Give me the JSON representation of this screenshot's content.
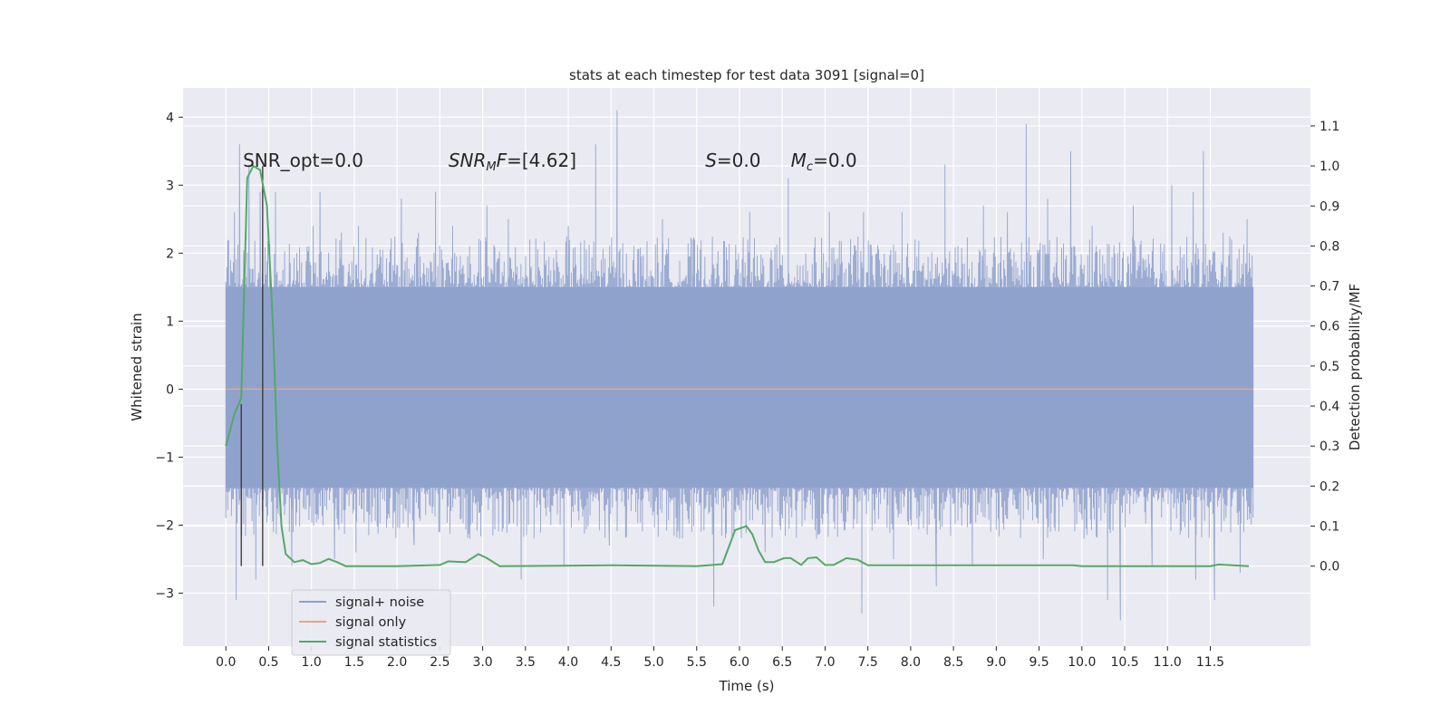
{
  "chart_data": {
    "type": "line",
    "title": "stats at each timestep for test data 3091 [signal=0]",
    "xlabel": "Time (s)",
    "ylabel": "Whitened strain",
    "ylabel_right": "Detection probability/MF",
    "xlim": [
      -0.5,
      12.67
    ],
    "ylim": [
      -3.78,
      4.43
    ],
    "ylim_right": [
      -0.2,
      1.195
    ],
    "x_ticks": [
      0.0,
      0.5,
      1.0,
      1.5,
      2.0,
      2.5,
      3.0,
      3.5,
      4.0,
      4.5,
      5.0,
      5.5,
      6.0,
      6.5,
      7.0,
      7.5,
      8.0,
      8.5,
      9.0,
      9.5,
      10.0,
      10.5,
      11.0,
      11.5
    ],
    "x_tick_labels": [
      "0.0",
      "0.5",
      "1.0",
      "1.5",
      "2.0",
      "2.5",
      "3.0",
      "3.5",
      "4.0",
      "4.5",
      "5.0",
      "5.5",
      "6.0",
      "6.5",
      "7.0",
      "7.5",
      "8.0",
      "8.5",
      "9.0",
      "9.5",
      "10.0",
      "10.5",
      "11.0",
      "11.5"
    ],
    "y_ticks": [
      -3,
      -2,
      -1,
      0,
      1,
      2,
      3,
      4
    ],
    "y_tick_labels": [
      "−3",
      "−2",
      "−1",
      "0",
      "1",
      "2",
      "3",
      "4"
    ],
    "y_ticks_right": [
      0.0,
      0.1,
      0.2,
      0.3,
      0.4,
      0.5,
      0.6,
      0.7,
      0.8,
      0.9,
      1.0,
      1.1
    ],
    "y_tick_labels_right": [
      "0.0",
      "0.1",
      "0.2",
      "0.3",
      "0.4",
      "0.5",
      "0.6",
      "0.7",
      "0.8",
      "0.9",
      "1.0",
      "1.1"
    ],
    "grid": true,
    "legend_position": "lower-left",
    "series": [
      {
        "name": "signal+ noise",
        "axis": "left",
        "color": "#8da0cb",
        "noise_envelope": {
          "x_range": [
            0.0,
            12.0
          ],
          "typical_low": -1.45,
          "typical_high": 1.5
        },
        "spikes": [
          {
            "x": 0.03,
            "y": 2.1
          },
          {
            "x": 0.1,
            "y": 2.6
          },
          {
            "x": 0.16,
            "y": 3.6
          },
          {
            "x": 0.27,
            "y": 3.3
          },
          {
            "x": 0.4,
            "y": 2.9
          },
          {
            "x": 0.58,
            "y": 2.9
          },
          {
            "x": 0.97,
            "y": 2.1
          },
          {
            "x": 1.02,
            "y": 2.4
          },
          {
            "x": 1.1,
            "y": 2.9
          },
          {
            "x": 1.35,
            "y": 2.3
          },
          {
            "x": 1.55,
            "y": 2.4
          },
          {
            "x": 2.05,
            "y": 2.8
          },
          {
            "x": 2.25,
            "y": 2.3
          },
          {
            "x": 2.45,
            "y": 2.9
          },
          {
            "x": 2.65,
            "y": 2.4
          },
          {
            "x": 3.05,
            "y": 2.7
          },
          {
            "x": 3.3,
            "y": 2.5
          },
          {
            "x": 3.55,
            "y": 2.2
          },
          {
            "x": 4.0,
            "y": 2.4
          },
          {
            "x": 4.32,
            "y": 3.6
          },
          {
            "x": 4.57,
            "y": 4.1
          },
          {
            "x": 5.1,
            "y": 2.5
          },
          {
            "x": 5.45,
            "y": 2.2
          },
          {
            "x": 6.12,
            "y": 2.6
          },
          {
            "x": 6.57,
            "y": 3.1
          },
          {
            "x": 7.05,
            "y": 2.6
          },
          {
            "x": 7.45,
            "y": 2.6
          },
          {
            "x": 7.9,
            "y": 2.6
          },
          {
            "x": 8.4,
            "y": 3.3
          },
          {
            "x": 8.85,
            "y": 2.7
          },
          {
            "x": 9.13,
            "y": 2.6
          },
          {
            "x": 9.35,
            "y": 3.9
          },
          {
            "x": 9.6,
            "y": 2.8
          },
          {
            "x": 9.87,
            "y": 3.5
          },
          {
            "x": 10.12,
            "y": 2.4
          },
          {
            "x": 10.6,
            "y": 2.7
          },
          {
            "x": 11.05,
            "y": 3.0
          },
          {
            "x": 11.3,
            "y": 2.9
          },
          {
            "x": 11.42,
            "y": 3.5
          },
          {
            "x": 11.65,
            "y": 2.3
          },
          {
            "x": 11.93,
            "y": 2.5
          }
        ],
        "dips": [
          {
            "x": 0.12,
            "y": -3.1
          },
          {
            "x": 0.35,
            "y": -2.8
          },
          {
            "x": 0.77,
            "y": -2.6
          },
          {
            "x": 1.27,
            "y": -2.5
          },
          {
            "x": 1.52,
            "y": -2.4
          },
          {
            "x": 2.2,
            "y": -2.3
          },
          {
            "x": 2.85,
            "y": -2.2
          },
          {
            "x": 3.45,
            "y": -2.8
          },
          {
            "x": 3.95,
            "y": -2.6
          },
          {
            "x": 4.48,
            "y": -2.3
          },
          {
            "x": 5.3,
            "y": -2.2
          },
          {
            "x": 5.7,
            "y": -3.2
          },
          {
            "x": 6.3,
            "y": -2.4
          },
          {
            "x": 6.9,
            "y": -2.2
          },
          {
            "x": 7.43,
            "y": -3.3
          },
          {
            "x": 7.8,
            "y": -2.5
          },
          {
            "x": 8.3,
            "y": -2.9
          },
          {
            "x": 8.72,
            "y": -2.6
          },
          {
            "x": 9.55,
            "y": -2.5
          },
          {
            "x": 10.3,
            "y": -3.1
          },
          {
            "x": 10.45,
            "y": -3.4
          },
          {
            "x": 10.82,
            "y": -2.6
          },
          {
            "x": 11.33,
            "y": -2.8
          },
          {
            "x": 11.55,
            "y": -3.1
          },
          {
            "x": 11.85,
            "y": -2.7
          }
        ]
      },
      {
        "name": "signal only",
        "axis": "left",
        "color": "#e5a58a",
        "x": [
          0.0,
          12.0
        ],
        "y": [
          0.0,
          0.0
        ]
      },
      {
        "name": "signal statistics",
        "axis": "right",
        "color": "#55a868",
        "x": [
          0.0,
          0.1,
          0.18,
          0.25,
          0.32,
          0.4,
          0.48,
          0.55,
          0.6,
          0.65,
          0.7,
          0.8,
          0.9,
          1.0,
          1.1,
          1.2,
          1.3,
          1.4,
          2.0,
          2.5,
          2.6,
          2.8,
          2.95,
          3.05,
          3.2,
          4.5,
          5.5,
          5.8,
          5.95,
          6.08,
          6.15,
          6.22,
          6.3,
          6.4,
          6.52,
          6.6,
          6.72,
          6.8,
          6.9,
          7.0,
          7.1,
          7.25,
          7.38,
          7.5,
          9.9,
          10.0,
          11.5,
          11.6,
          11.95
        ],
        "y": [
          0.3,
          0.38,
          0.42,
          0.97,
          1.0,
          0.99,
          0.9,
          0.6,
          0.3,
          0.1,
          0.03,
          0.01,
          0.015,
          0.005,
          0.008,
          0.018,
          0.01,
          0.0,
          0.0,
          0.003,
          0.012,
          0.01,
          0.03,
          0.02,
          0.0,
          0.002,
          0.0,
          0.005,
          0.09,
          0.1,
          0.08,
          0.04,
          0.01,
          0.01,
          0.02,
          0.02,
          0.003,
          0.02,
          0.022,
          0.003,
          0.003,
          0.02,
          0.016,
          0.002,
          0.002,
          0.0,
          0.0,
          0.004,
          0.0
        ]
      }
    ],
    "vertical_markers": [
      {
        "x": 0.18,
        "y_top": 0.405
      },
      {
        "x": 0.43,
        "y_top": 1.0
      }
    ],
    "annotations": [
      {
        "text": "SNR_opt=0.0",
        "x": 0.2
      },
      {
        "text": "SNR_MF=[4.62]",
        "x": 2.6
      },
      {
        "text": "S=0.0",
        "x": 5.6
      },
      {
        "text": "M_c=0.0",
        "x": 6.6
      }
    ]
  }
}
